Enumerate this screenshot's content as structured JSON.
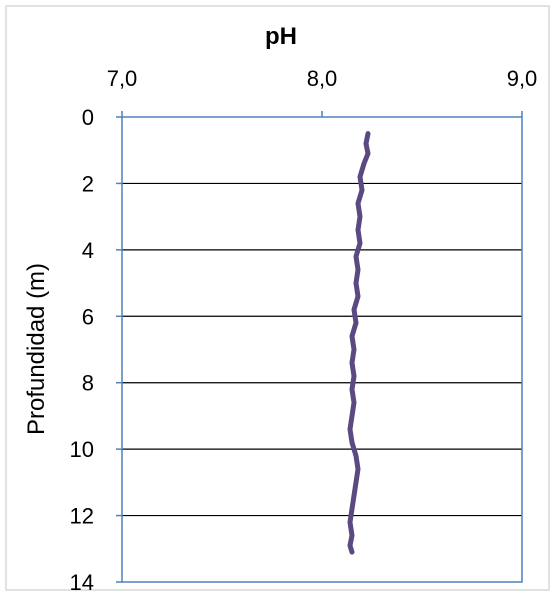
{
  "chart_data": {
    "type": "line",
    "title": "pH",
    "xlabel": "pH",
    "ylabel": "Profundidad (m)",
    "x_axis_position": "top",
    "y_axis_inverted": true,
    "xlim": [
      7.0,
      9.0
    ],
    "ylim": [
      0,
      14
    ],
    "x_ticks": [
      "7,0",
      "8,0",
      "9,0"
    ],
    "y_ticks": [
      "0",
      "2",
      "4",
      "6",
      "8",
      "10",
      "12",
      "14"
    ],
    "grid": "horizontal",
    "line_color": "#5b4a82",
    "axis_color": "#4f81bd",
    "series": [
      {
        "points": [
          {
            "x": 8.23,
            "y": 0.5
          },
          {
            "x": 8.22,
            "y": 0.8
          },
          {
            "x": 8.23,
            "y": 1.1
          },
          {
            "x": 8.21,
            "y": 1.4
          },
          {
            "x": 8.19,
            "y": 1.8
          },
          {
            "x": 8.2,
            "y": 2.2
          },
          {
            "x": 8.18,
            "y": 2.6
          },
          {
            "x": 8.19,
            "y": 3.0
          },
          {
            "x": 8.18,
            "y": 3.4
          },
          {
            "x": 8.19,
            "y": 3.8
          },
          {
            "x": 8.17,
            "y": 4.2
          },
          {
            "x": 8.18,
            "y": 4.6
          },
          {
            "x": 8.17,
            "y": 5.0
          },
          {
            "x": 8.18,
            "y": 5.4
          },
          {
            "x": 8.16,
            "y": 5.8
          },
          {
            "x": 8.17,
            "y": 6.2
          },
          {
            "x": 8.15,
            "y": 6.6
          },
          {
            "x": 8.16,
            "y": 7.0
          },
          {
            "x": 8.15,
            "y": 7.4
          },
          {
            "x": 8.16,
            "y": 7.8
          },
          {
            "x": 8.15,
            "y": 8.2
          },
          {
            "x": 8.16,
            "y": 8.6
          },
          {
            "x": 8.15,
            "y": 9.0
          },
          {
            "x": 8.14,
            "y": 9.4
          },
          {
            "x": 8.15,
            "y": 9.8
          },
          {
            "x": 8.17,
            "y": 10.2
          },
          {
            "x": 8.18,
            "y": 10.6
          },
          {
            "x": 8.17,
            "y": 11.0
          },
          {
            "x": 8.16,
            "y": 11.4
          },
          {
            "x": 8.15,
            "y": 11.8
          },
          {
            "x": 8.14,
            "y": 12.2
          },
          {
            "x": 8.15,
            "y": 12.6
          },
          {
            "x": 8.14,
            "y": 12.9
          },
          {
            "x": 8.15,
            "y": 13.1
          }
        ]
      }
    ]
  }
}
